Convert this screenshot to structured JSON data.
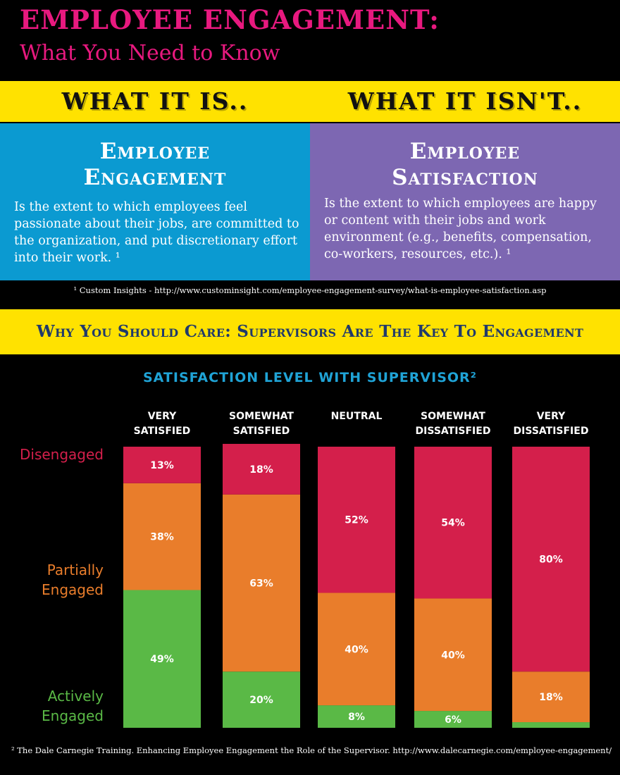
{
  "header": {
    "title": "EMPLOYEE ENGAGEMENT:",
    "subtitle": "What You Need to Know"
  },
  "comparison": {
    "left_heading": "WHAT IT IS..",
    "right_heading": "WHAT IT ISN'T..",
    "left": {
      "title_line1": "Employee",
      "title_line2": "Engagement",
      "body": "Is the extent to which employees feel passionate about their jobs, are committed to the organization, and put discretionary effort into their work. ¹"
    },
    "right": {
      "title_line1": "Employee",
      "title_line2": "Satisfaction",
      "body": "Is the extent to which employees are happy or content with their jobs and work environment (e.g., benefits, compensation, co-workers, resources, etc.). ¹"
    },
    "footnote": "¹ Custom Insights - http://www.custominsight.com/employee-engagement-survey/what-is-employee-satisfaction.asp"
  },
  "care_banner": "Why You Should Care:  Supervisors Are The Key To Engagement",
  "chart_title": "SATISFACTION LEVEL WITH SUPERVISOR²",
  "footnote2": "² The Dale Carnegie Training.  Enhancing Employee Engagement the Role of the Supervisor.  http://www.dalecarnegie.com/employee-engagement/",
  "colors": {
    "engaged": "#5ab946",
    "partial": "#e97d2b",
    "disengaged": "#d41f4b",
    "accent_pink": "#e8197f",
    "band_yellow": "#ffe200"
  },
  "chart_data": {
    "type": "bar",
    "stacked": true,
    "title": "SATISFACTION LEVEL WITH SUPERVISOR²",
    "categories": [
      [
        "VERY",
        "SATISFIED"
      ],
      [
        "SOMEWHAT",
        "SATISFIED"
      ],
      [
        "NEUTRAL"
      ],
      [
        "SOMEWHAT",
        "DISSATISFIED"
      ],
      [
        "VERY",
        "DISSATISFIED"
      ]
    ],
    "series": [
      {
        "name": "Actively Engaged",
        "name_lines": [
          "Actively",
          "Engaged"
        ],
        "color": "#5ab946",
        "values": [
          49,
          20,
          8,
          6,
          2
        ],
        "labels": [
          "49%",
          "20%",
          "8%",
          "6%",
          ""
        ]
      },
      {
        "name": "Partially Engaged",
        "name_lines": [
          "Partially",
          "Engaged"
        ],
        "color": "#e97d2b",
        "values": [
          38,
          63,
          40,
          40,
          18
        ],
        "labels": [
          "38%",
          "63%",
          "40%",
          "40%",
          "18%"
        ]
      },
      {
        "name": "Disengaged",
        "name_lines": [
          "Disengaged"
        ],
        "color": "#d41f4b",
        "values": [
          13,
          18,
          52,
          54,
          80
        ],
        "labels": [
          "13%",
          "18%",
          "52%",
          "54%",
          "80%"
        ]
      }
    ],
    "ylim": [
      0,
      100
    ],
    "grid": false,
    "legend": "left"
  }
}
